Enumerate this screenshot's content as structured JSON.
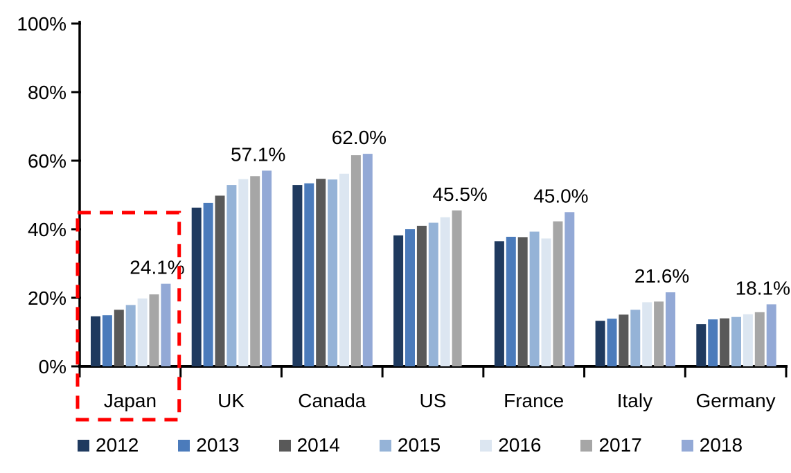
{
  "chart_data": {
    "type": "bar",
    "title": "",
    "categories": [
      "Japan",
      "UK",
      "Canada",
      "US",
      "France",
      "Italy",
      "Germany"
    ],
    "series": [
      {
        "name": "2012",
        "color": "#1F3A5F",
        "values": [
          14.6,
          46.3,
          52.9,
          38.2,
          36.5,
          13.3,
          12.3
        ]
      },
      {
        "name": "2013",
        "color": "#4B7BBB",
        "values": [
          14.9,
          47.7,
          53.4,
          40.0,
          37.8,
          13.9,
          13.7
        ]
      },
      {
        "name": "2014",
        "color": "#595959",
        "values": [
          16.5,
          49.8,
          54.7,
          41.0,
          37.7,
          15.1,
          14.0
        ]
      },
      {
        "name": "2015",
        "color": "#95B3D7",
        "values": [
          17.9,
          52.9,
          54.5,
          41.9,
          39.3,
          16.5,
          14.4
        ]
      },
      {
        "name": "2016",
        "color": "#DCE6F1",
        "values": [
          19.8,
          54.6,
          56.2,
          43.5,
          37.3,
          18.7,
          15.2
        ]
      },
      {
        "name": "2017",
        "color": "#A6A6A6",
        "values": [
          21.0,
          55.5,
          61.6,
          45.5,
          42.3,
          18.9,
          15.8
        ]
      },
      {
        "name": "2018",
        "color": "#93A9D6",
        "values": [
          24.1,
          57.1,
          62.0,
          null,
          45.0,
          21.6,
          18.1
        ]
      }
    ],
    "peak_labels": [
      "24.1%",
      "57.1%",
      "62.0%",
      "45.5%",
      "45.0%",
      "21.6%",
      "18.1%"
    ],
    "y_axis": {
      "min": 0,
      "max": 100,
      "tick_labels": [
        "0%",
        "20%",
        "40%",
        "60%",
        "80%",
        "100%"
      ]
    },
    "legend": {
      "position": "bottom",
      "entries": [
        "2012",
        "2013",
        "2014",
        "2015",
        "2016",
        "2017",
        "2018"
      ]
    },
    "highlight_box": {
      "target_category": "Japan",
      "color": "#FF0000",
      "style": "dashed"
    },
    "grid": "off",
    "axis_color": "#000000",
    "background_color": "#FFFFFF",
    "text_color": "#000000"
  }
}
